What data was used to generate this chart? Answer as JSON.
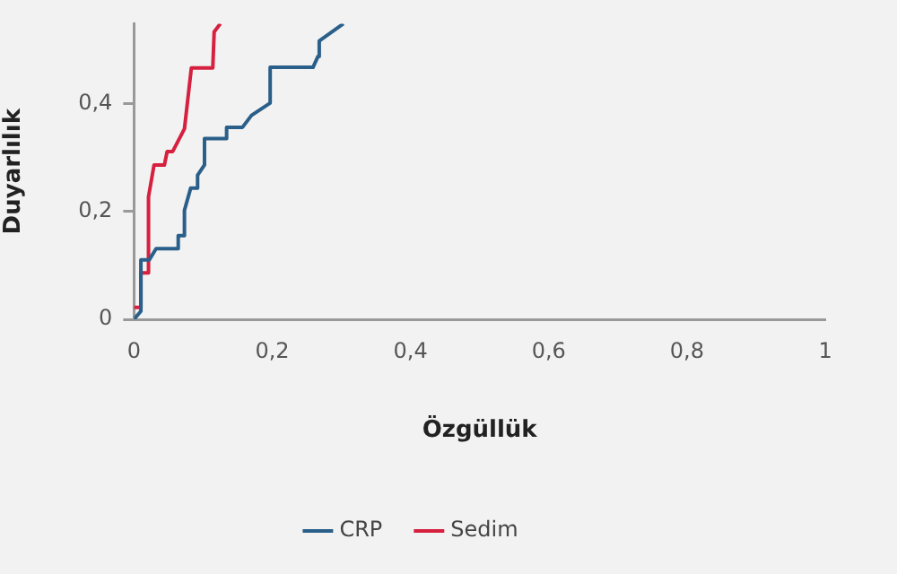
{
  "chart_data": {
    "type": "line",
    "xlabel": "Özgüllük",
    "ylabel": "Duyarlılık",
    "xlim": [
      0,
      1
    ],
    "xticks": [
      0,
      {
        "value": 0.2,
        "label": "0,2"
      },
      {
        "value": 0.4,
        "label": "0,4"
      },
      {
        "value": 0.6,
        "label": "0,6"
      },
      {
        "value": 0.8,
        "label": "0,8"
      },
      1
    ],
    "ylim": [
      0,
      0.548
    ],
    "yticks": [
      0,
      {
        "value": 0.2,
        "label": "0,2"
      },
      {
        "value": 0.4,
        "label": "0,4"
      }
    ],
    "grid": false,
    "legend": "bottom",
    "marker": "none",
    "line_style": "solid",
    "series": [
      {
        "name": "CRP",
        "color": "#2a5f8a",
        "x": [
          0,
          0.01,
          0.01,
          0.022,
          0.032,
          0.064,
          0.064,
          0.073,
          0.073,
          0.082,
          0.092,
          0.092,
          0.102,
          0.102,
          0.134,
          0.134,
          0.157,
          0.17,
          0.197,
          0.197,
          0.259,
          0.266,
          0.268,
          0.303
        ],
        "values": [
          0,
          0.015,
          0.11,
          0.11,
          0.131,
          0.131,
          0.155,
          0.155,
          0.202,
          0.243,
          0.243,
          0.267,
          0.286,
          0.335,
          0.335,
          0.356,
          0.356,
          0.378,
          0.401,
          0.467,
          0.467,
          0.487,
          0.516,
          0.548
        ]
      },
      {
        "name": "Sedim",
        "color": "#d6203f",
        "x": [
          0,
          0.01,
          0.01,
          0.021,
          0.021,
          0.029,
          0.044,
          0.048,
          0.056,
          0.073,
          0.083,
          0.114,
          0.116,
          0.125
        ],
        "values": [
          0.022,
          0.022,
          0.086,
          0.086,
          0.227,
          0.286,
          0.286,
          0.311,
          0.311,
          0.353,
          0.466,
          0.466,
          0.533,
          0.548
        ]
      }
    ]
  }
}
